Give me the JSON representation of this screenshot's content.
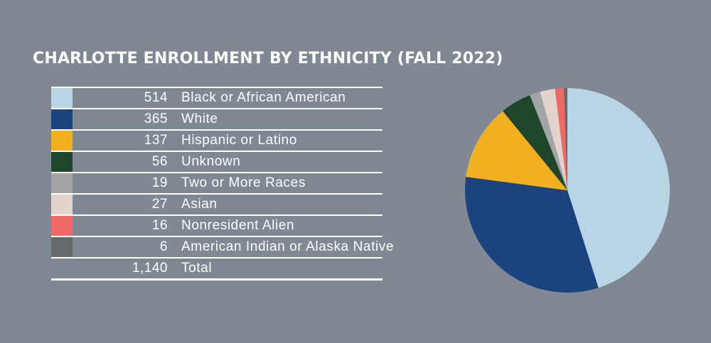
{
  "title": "CHARLOTTE ENROLLMENT BY ETHNICITY (FALL 2022)",
  "rows": [
    {
      "count": "514",
      "label": "Black or African American",
      "color": "#b9d4e4"
    },
    {
      "count": "365",
      "label": "White",
      "color": "#1a4380"
    },
    {
      "count": "137",
      "label": "Hispanic or Latino",
      "color": "#f1b022"
    },
    {
      "count": "56",
      "label": "Unknown",
      "color": "#1f462b"
    },
    {
      "count": "19",
      "label": "Two or More Races",
      "color": "#a2a4a6"
    },
    {
      "count": "27",
      "label": "Asian",
      "color": "#e3d3cd"
    },
    {
      "count": "16",
      "label": "Nonresident Alien",
      "color": "#ef6a67"
    },
    {
      "count": "6",
      "label": "American Indian or Alaska Native",
      "color": "#66696c"
    }
  ],
  "total": {
    "count": "1,140",
    "label": "Total"
  },
  "chart_data": {
    "type": "pie",
    "categories": [
      "Black or African American",
      "White",
      "Hispanic or Latino",
      "Unknown",
      "Two or More Races",
      "Asian",
      "Nonresident Alien",
      "American Indian or Alaska Native"
    ],
    "values": [
      514,
      365,
      137,
      56,
      19,
      27,
      16,
      6
    ],
    "colors": [
      "#b9d4e4",
      "#1a4380",
      "#f1b022",
      "#1f462b",
      "#a2a4a6",
      "#e3d3cd",
      "#ef6a67",
      "#66696c"
    ],
    "title": "CHARLOTTE ENROLLMENT BY ETHNICITY (FALL 2022)"
  }
}
